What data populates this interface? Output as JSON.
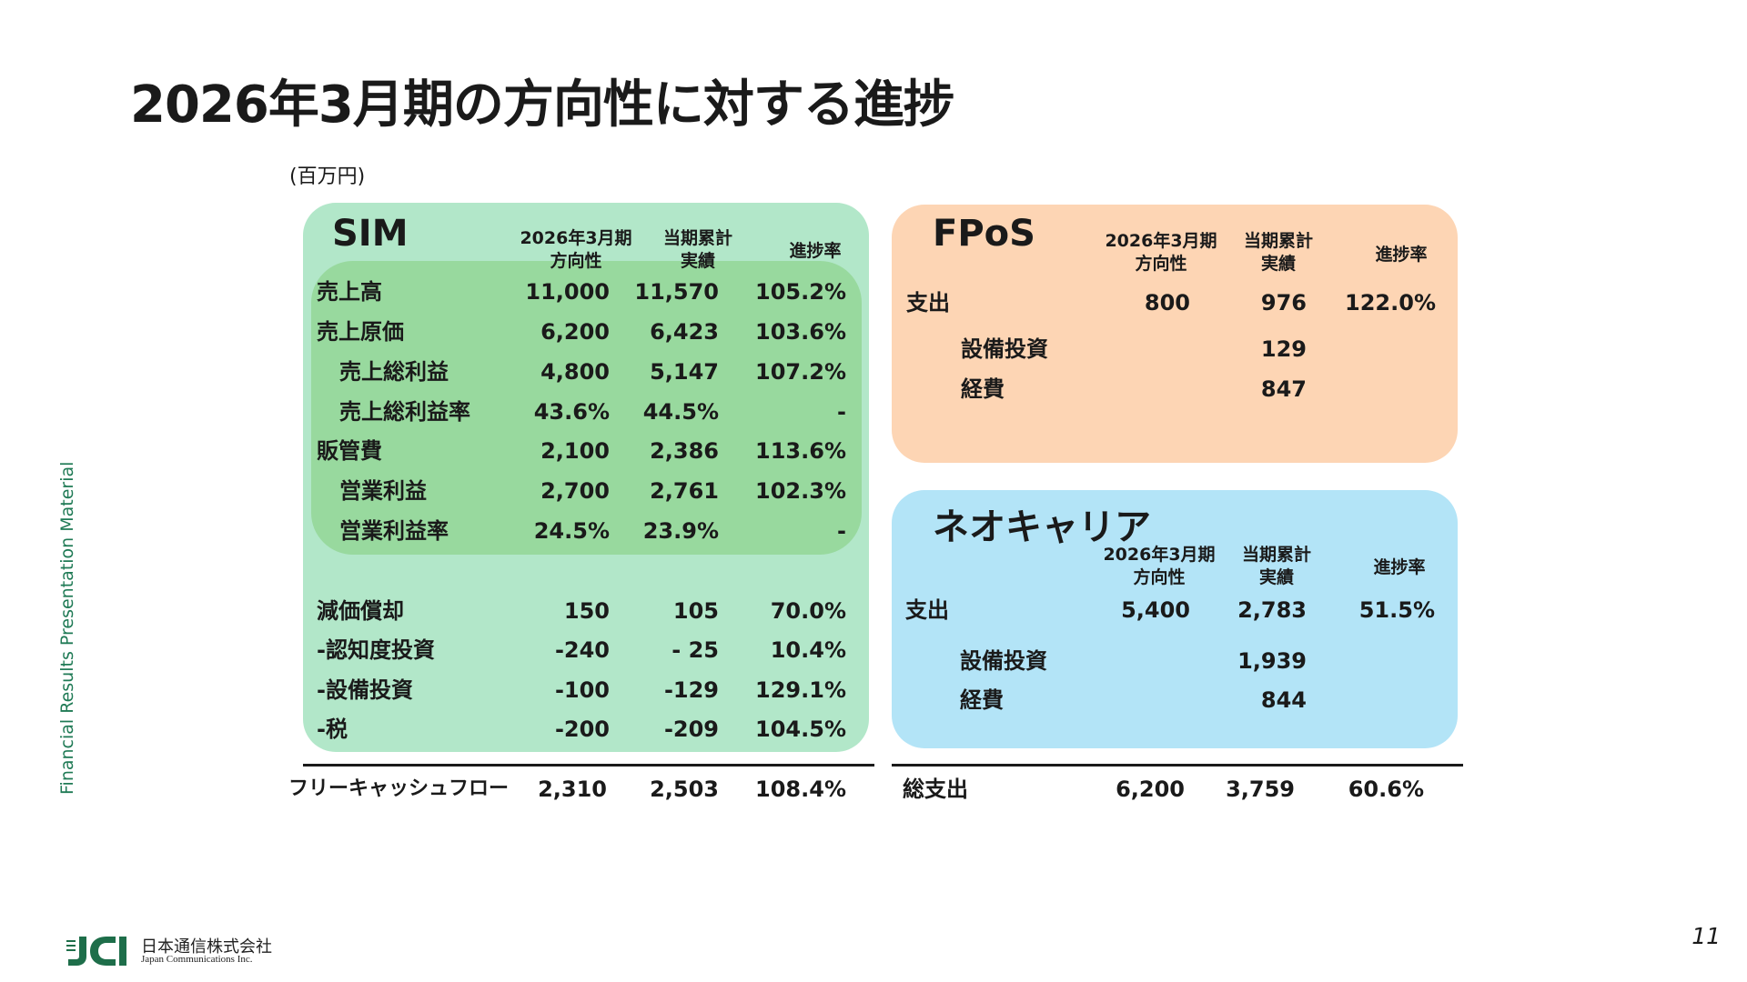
{
  "title": "2026年3月期の方向性に対する進捗",
  "unit": "(百万円)",
  "side_label": "Financial Results Presentation Material",
  "page_number": "11",
  "logo": {
    "company_ja": "日本通信株式会社",
    "company_en": "Japan Communications Inc."
  },
  "colors": {
    "sim_panel": "#b2e7c9",
    "sim_inner": "#98d99e",
    "fpos_panel": "#fdd5b4",
    "neo_panel": "#b3e4f7",
    "side_text": "#1f7a55"
  },
  "sim": {
    "title": "SIM",
    "headers": {
      "plan_1": "2026年3月期",
      "plan_2": "方向性",
      "actual_1": "当期累計",
      "actual_2": "実績",
      "progress": "進捗率"
    },
    "rows": [
      {
        "label": "売上高",
        "plan": "11,000",
        "actual": "11,570",
        "rate": "105.2%"
      },
      {
        "label": "売上原価",
        "plan": "6,200",
        "actual": "6,423",
        "rate": "103.6%"
      },
      {
        "label": "売上総利益",
        "plan": "4,800",
        "actual": "5,147",
        "rate": "107.2%"
      },
      {
        "label": "売上総利益率",
        "plan": "43.6%",
        "actual": "44.5%",
        "rate": "-"
      },
      {
        "label": "販管費",
        "plan": "2,100",
        "actual": "2,386",
        "rate": "113.6%"
      },
      {
        "label": "営業利益",
        "plan": "2,700",
        "actual": "2,761",
        "rate": "102.3%"
      },
      {
        "label": "営業利益率",
        "plan": "24.5%",
        "actual": "23.9%",
        "rate": "-"
      },
      {
        "label": "減価償却",
        "plan": "150",
        "actual": "105",
        "rate": "70.0%"
      },
      {
        "label": "-認知度投資",
        "plan": "-240",
        "actual": "- 25",
        "rate": "10.4%"
      },
      {
        "label": "-設備投資",
        "plan": "-100",
        "actual": "-129",
        "rate": "129.1%"
      },
      {
        "label": "-税",
        "plan": "-200",
        "actual": "-209",
        "rate": "104.5%"
      }
    ],
    "total": {
      "label": "フリーキャッシュフロー",
      "plan": "2,310",
      "actual": "2,503",
      "rate": "108.4%"
    }
  },
  "fpos": {
    "title": "FPoS",
    "headers": {
      "plan_1": "2026年3月期",
      "plan_2": "方向性",
      "actual_1": "当期累計",
      "actual_2": "実績",
      "progress": "進捗率"
    },
    "rows": [
      {
        "label": "支出",
        "plan": "800",
        "actual": "976",
        "rate": "122.0%"
      },
      {
        "label": "設備投資",
        "plan": "",
        "actual": "129",
        "rate": ""
      },
      {
        "label": "経費",
        "plan": "",
        "actual": "847",
        "rate": ""
      }
    ]
  },
  "neo": {
    "title": "ネオキャリア",
    "headers": {
      "plan_1": "2026年3月期",
      "plan_2": "方向性",
      "actual_1": "当期累計",
      "actual_2": "実績",
      "progress": "進捗率"
    },
    "rows": [
      {
        "label": "支出",
        "plan": "5,400",
        "actual": "2,783",
        "rate": "51.5%"
      },
      {
        "label": "設備投資",
        "plan": "",
        "actual": "1,939",
        "rate": ""
      },
      {
        "label": "経費",
        "plan": "",
        "actual": "844",
        "rate": ""
      }
    ]
  },
  "total_spend": {
    "label": "総支出",
    "plan": "6,200",
    "actual": "3,759",
    "rate": "60.6%"
  }
}
